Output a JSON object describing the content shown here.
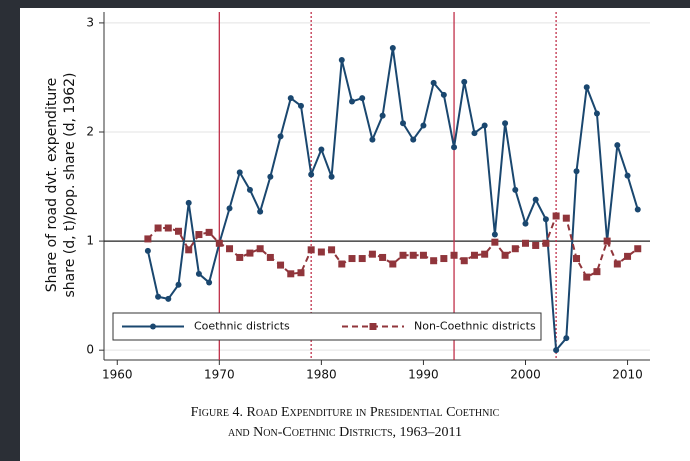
{
  "chart_data": {
    "type": "line",
    "y_label": [
      "Share of road dvt. expenditure",
      "share (d, t)/pop. share (d, 1962)"
    ],
    "caption": [
      "Figure 4. Road Expenditure in Presidential Coethnic",
      "and Non-Coethnic Districts, 1963–2011"
    ],
    "x": [
      1963,
      1964,
      1965,
      1966,
      1967,
      1968,
      1969,
      1970,
      1971,
      1972,
      1973,
      1974,
      1975,
      1976,
      1977,
      1978,
      1979,
      1980,
      1981,
      1982,
      1983,
      1984,
      1985,
      1986,
      1987,
      1988,
      1989,
      1990,
      1991,
      1992,
      1993,
      1994,
      1995,
      1996,
      1997,
      1998,
      1999,
      2000,
      2001,
      2002,
      2003,
      2004,
      2005,
      2006,
      2007,
      2008,
      2009,
      2010,
      2011
    ],
    "series": [
      {
        "name": "Coethnic districts",
        "color": "#1a476f",
        "marker": "circle",
        "line_style": "solid",
        "values": [
          0.91,
          0.49,
          0.47,
          0.6,
          1.35,
          0.7,
          0.62,
          0.98,
          1.3,
          1.63,
          1.47,
          1.27,
          1.59,
          1.96,
          2.31,
          2.24,
          1.61,
          1.84,
          1.59,
          2.66,
          2.28,
          2.31,
          1.93,
          2.15,
          2.77,
          2.08,
          1.93,
          2.06,
          2.45,
          2.34,
          1.86,
          2.46,
          1.99,
          2.06,
          1.06,
          2.08,
          1.47,
          1.16,
          1.38,
          1.2,
          0.0,
          0.11,
          1.64,
          2.41,
          2.17,
          1.0,
          1.88,
          1.6,
          1.29
        ]
      },
      {
        "name": "Non-Coethnic districts",
        "color": "#90353b",
        "marker": "square",
        "line_style": "dashed",
        "values": [
          1.02,
          1.12,
          1.12,
          1.09,
          0.92,
          1.06,
          1.08,
          0.98,
          0.93,
          0.85,
          0.89,
          0.93,
          0.85,
          0.78,
          0.7,
          0.71,
          0.92,
          0.9,
          0.92,
          0.79,
          0.84,
          0.84,
          0.88,
          0.85,
          0.79,
          0.87,
          0.87,
          0.87,
          0.82,
          0.84,
          0.87,
          0.82,
          0.87,
          0.88,
          0.99,
          0.87,
          0.93,
          0.98,
          0.96,
          0.98,
          1.23,
          1.21,
          0.84,
          0.67,
          0.72,
          1.0,
          0.79,
          0.86,
          0.93
        ]
      }
    ],
    "vlines": [
      {
        "x": 1970,
        "style": "solid"
      },
      {
        "x": 1979,
        "style": "dotted"
      },
      {
        "x": 1993,
        "style": "solid"
      },
      {
        "x": 2003,
        "style": "dotted"
      }
    ],
    "vline_color": "#c0304a",
    "hline": 1,
    "xlim": [
      1958.7,
      2012.2
    ],
    "ylim": [
      -0.09,
      3.1
    ],
    "xticks": [
      1960,
      1970,
      1980,
      1990,
      2000,
      2010
    ],
    "yticks": [
      0,
      1,
      2,
      3
    ],
    "grid": true,
    "legend": "bottom"
  }
}
